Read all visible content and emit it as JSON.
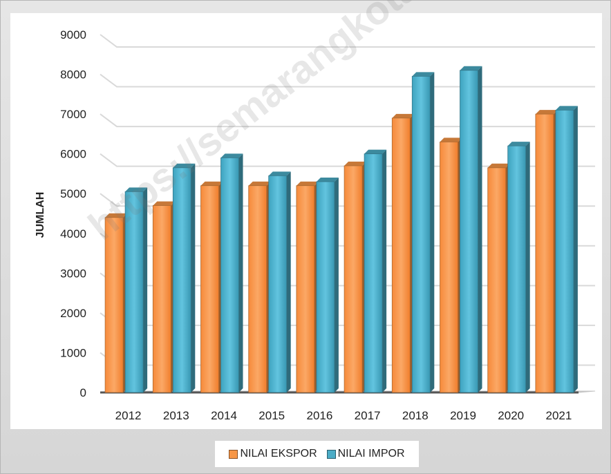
{
  "chart_data": {
    "type": "bar",
    "categories": [
      "2012",
      "2013",
      "2014",
      "2015",
      "2016",
      "2017",
      "2018",
      "2019",
      "2020",
      "2021"
    ],
    "series": [
      {
        "name": "NILAI EKSPOR",
        "values": [
          4400,
          4700,
          5200,
          5200,
          5200,
          5700,
          6900,
          6300,
          5650,
          7000
        ],
        "color": "#f79646"
      },
      {
        "name": "NILAI IMPOR",
        "values": [
          5050,
          5650,
          5900,
          5450,
          5300,
          6000,
          7950,
          8100,
          6200,
          7100
        ],
        "color": "#4bacc6"
      }
    ],
    "ylabel": "JUMLAH",
    "xlabel": "",
    "ylim": [
      0,
      9000
    ],
    "yticks": [
      "0",
      "1000",
      "2000",
      "3000",
      "4000",
      "5000",
      "6000",
      "7000",
      "8000",
      "9000"
    ],
    "grid": true,
    "legend": "bottom",
    "style": "3d-clustered-column"
  },
  "watermark": "https://semarangkota.bps.go.id"
}
